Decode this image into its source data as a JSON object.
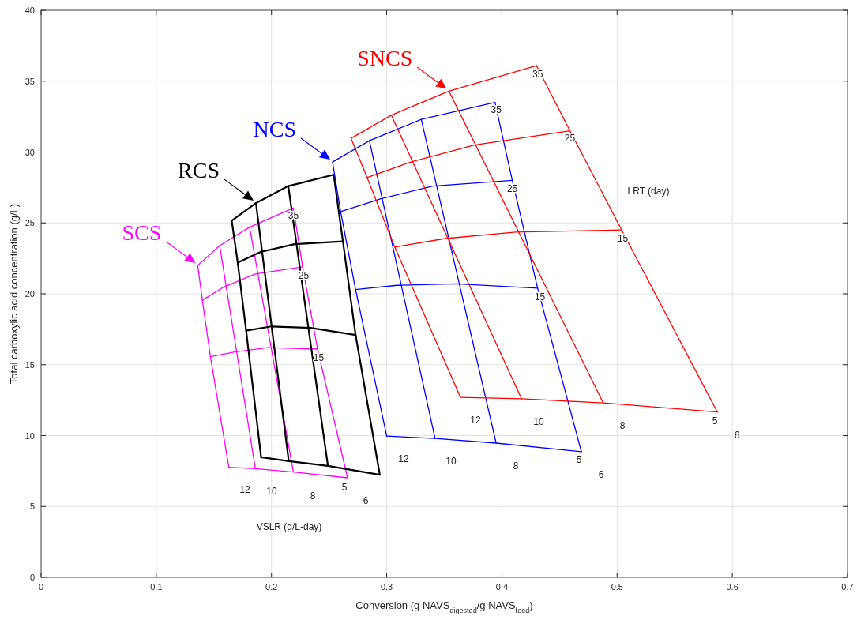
{
  "chart_data": {
    "type": "line",
    "xlabel": "Conversion (g NAVS$_{digested}$/g NAVS$_{feed}$)",
    "ylabel": "Total carboxylic acid concentration (g/L)",
    "xlim": [
      0,
      0.7
    ],
    "ylim": [
      0,
      40
    ],
    "xticks": [
      0,
      0.1,
      0.2,
      0.3,
      0.4,
      0.5,
      0.6,
      0.7
    ],
    "yticks": [
      0,
      5,
      10,
      15,
      20,
      25,
      30,
      35,
      40
    ],
    "grid": true,
    "marker": "none",
    "line_style": "solid",
    "series": [
      {
        "color": "#ff00ff",
        "x": [
          0.136,
          0.155,
          0.181,
          0.219
        ],
        "values": [
          22.0,
          23.4,
          24.7,
          26.05
        ]
      },
      {
        "color": "#ff00ff",
        "x": [
          0.14,
          0.159,
          0.186,
          0.227
        ],
        "values": [
          19.55,
          20.5,
          21.4,
          21.9
        ]
      },
      {
        "color": "#ff00ff",
        "x": [
          0.147,
          0.168,
          0.197,
          0.24
        ],
        "values": [
          15.56,
          15.9,
          16.2,
          16.1
        ]
      },
      {
        "color": "#ff00ff",
        "x": [
          0.163,
          0.186,
          0.219,
          0.266
        ],
        "values": [
          7.76,
          7.67,
          7.43,
          7.02
        ]
      },
      {
        "name": "SCS",
        "color": "#ff00ff",
        "x": [
          0.136,
          0.14,
          0.147,
          0.163
        ],
        "values": [
          22.0,
          19.55,
          15.56,
          7.76
        ]
      },
      {
        "color": "#ff00ff",
        "x": [
          0.155,
          0.186
        ],
        "values": [
          23.4,
          7.67
        ]
      },
      {
        "color": "#ff00ff",
        "x": [
          0.181,
          0.219
        ],
        "values": [
          24.7,
          7.43
        ]
      },
      {
        "color": "#ff00ff",
        "x": [
          0.219,
          0.227,
          0.24,
          0.266
        ],
        "values": [
          26.05,
          21.9,
          16.1,
          7.02
        ]
      },
      {
        "color": "#000000",
        "x": [
          0.1655,
          0.1865,
          0.2146,
          0.254
        ],
        "values": [
          25.16,
          26.4,
          27.6,
          28.4
        ]
      },
      {
        "color": "#000000",
        "x": [
          0.1707,
          0.1906,
          0.22,
          0.262
        ],
        "values": [
          22.2,
          22.95,
          23.5,
          23.7
        ]
      },
      {
        "color": "#000000",
        "x": [
          0.178,
          0.2,
          0.234,
          0.273
        ],
        "values": [
          17.4,
          17.7,
          17.6,
          17.1
        ]
      },
      {
        "color": "#000000",
        "x": [
          0.191,
          0.215,
          0.249,
          0.294
        ],
        "values": [
          8.47,
          8.2,
          7.86,
          7.24
        ]
      },
      {
        "color": "#000000",
        "x": [
          0.1655,
          0.1707,
          0.178,
          0.191
        ],
        "values": [
          25.16,
          22.2,
          17.4,
          8.47
        ]
      },
      {
        "name": "RCS",
        "color": "#000000",
        "x": [
          0.1865,
          0.215
        ],
        "values": [
          26.4,
          8.2
        ]
      },
      {
        "color": "#000000",
        "x": [
          0.2146,
          0.249
        ],
        "values": [
          27.6,
          7.86
        ]
      },
      {
        "color": "#000000",
        "x": [
          0.254,
          0.262,
          0.273,
          0.294
        ],
        "values": [
          28.4,
          23.7,
          17.1,
          7.24
        ]
      },
      {
        "color": "#0000ff",
        "x": [
          0.253,
          0.285,
          0.33,
          0.394
        ],
        "values": [
          29.3,
          30.8,
          32.3,
          33.5
        ]
      },
      {
        "color": "#0000ff",
        "x": [
          0.26,
          0.295,
          0.34,
          0.409
        ],
        "values": [
          25.8,
          26.7,
          27.6,
          28.0
        ]
      },
      {
        "color": "#0000ff",
        "x": [
          0.273,
          0.309,
          0.36,
          0.431
        ],
        "values": [
          20.3,
          20.6,
          20.7,
          20.4
        ]
      },
      {
        "color": "#0000ff",
        "x": [
          0.3,
          0.342,
          0.395,
          0.469
        ],
        "values": [
          9.96,
          9.8,
          9.47,
          8.86
        ]
      },
      {
        "name": "NCS",
        "color": "#0000ff",
        "x": [
          0.253,
          0.26,
          0.273,
          0.3
        ],
        "values": [
          29.3,
          25.8,
          20.3,
          9.96
        ]
      },
      {
        "color": "#0000ff",
        "x": [
          0.285,
          0.342
        ],
        "values": [
          30.8,
          9.8
        ]
      },
      {
        "color": "#0000ff",
        "x": [
          0.33,
          0.395
        ],
        "values": [
          32.3,
          9.47
        ]
      },
      {
        "color": "#0000ff",
        "x": [
          0.394,
          0.409,
          0.431,
          0.469
        ],
        "values": [
          33.5,
          28.0,
          20.4,
          8.86
        ]
      },
      {
        "color": "#ff0000",
        "x": [
          0.269,
          0.304,
          0.354,
          0.43
        ],
        "values": [
          30.97,
          32.6,
          34.3,
          36.1
        ]
      },
      {
        "color": "#ff0000",
        "x": [
          0.283,
          0.321,
          0.376,
          0.459
        ],
        "values": [
          28.2,
          29.3,
          30.5,
          31.5
        ]
      },
      {
        "color": "#ff0000",
        "x": [
          0.307,
          0.351,
          0.412,
          0.504
        ],
        "values": [
          23.3,
          23.9,
          24.35,
          24.5
        ]
      },
      {
        "color": "#ff0000",
        "x": [
          0.364,
          0.417,
          0.488,
          0.587
        ],
        "values": [
          12.7,
          12.6,
          12.3,
          11.66
        ]
      },
      {
        "color": "#ff0000",
        "x": [
          0.269,
          0.283,
          0.307,
          0.364
        ],
        "values": [
          30.97,
          28.2,
          23.3,
          12.7
        ]
      },
      {
        "color": "#ff0000",
        "x": [
          0.304,
          0.417
        ],
        "values": [
          32.6,
          12.6
        ]
      },
      {
        "name": "SNCS",
        "color": "#ff0000",
        "x": [
          0.354,
          0.488
        ],
        "values": [
          34.3,
          12.3
        ]
      },
      {
        "color": "#ff0000",
        "x": [
          0.43,
          0.459,
          0.504,
          0.587
        ],
        "values": [
          36.1,
          31.5,
          24.5,
          11.66
        ]
      }
    ],
    "annotations": [
      {
        "text": "35",
        "x": 0.219,
        "y": 25.5
      },
      {
        "text": "25",
        "x": 0.228,
        "y": 21.3
      },
      {
        "text": "15",
        "x": 0.241,
        "y": 15.5
      },
      "12",
      "10",
      "8",
      "5",
      "6",
      {
        "text": "35",
        "x": 0.395,
        "y": 33.0
      },
      {
        "text": "25",
        "x": 0.409,
        "y": 27.4
      },
      {
        "text": "15",
        "x": 0.433,
        "y": 19.8
      },
      "12",
      "10",
      "8",
      "5",
      "6",
      {
        "text": "35",
        "x": 0.431,
        "y": 35.5
      },
      {
        "text": "25",
        "x": 0.459,
        "y": 31.0
      },
      {
        "text": "15",
        "x": 0.505,
        "y": 23.9
      },
      "12",
      "10",
      "8",
      "5",
      "6",
      "LRT (day)",
      "VSLR (g/L-day)"
    ]
  }
}
